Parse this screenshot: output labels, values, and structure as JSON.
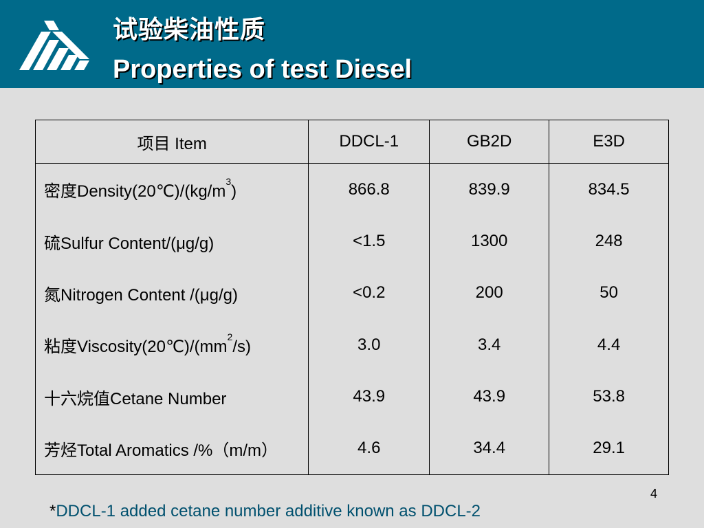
{
  "header": {
    "title_zh": "试验柴油性质",
    "title_en": "Properties of test Diesel",
    "bg_color": "#006a8a",
    "logo_icon": "company-logo-icon"
  },
  "table": {
    "headers": [
      "项目 Item",
      "DDCL-1",
      "GB2D",
      "E3D"
    ],
    "rows": [
      {
        "label_pre": "密度Density(20℃)/(kg/m",
        "label_sup": "3",
        "label_post": ")",
        "values": [
          "866.8",
          "839.9",
          "834.5"
        ]
      },
      {
        "label_pre": "硫Sulfur Content/(μg/g)",
        "label_sup": "",
        "label_post": "",
        "values": [
          "<1.5",
          "1300",
          "248"
        ]
      },
      {
        "label_pre": "氮Nitrogen Content /(μg/g)",
        "label_sup": "",
        "label_post": "",
        "values": [
          "<0.2",
          "200",
          "50"
        ]
      },
      {
        "label_pre": "粘度Viscosity(20℃)/(mm",
        "label_sup": "2",
        "label_post": "/s)",
        "values": [
          "3.0",
          "3.4",
          "4.4"
        ]
      },
      {
        "label_pre": "十六烷值Cetane Number",
        "label_sup": "",
        "label_post": "",
        "values": [
          "43.9",
          "43.9",
          "53.8"
        ]
      },
      {
        "label_pre": "芳烃Total Aromatics /%（m/m）",
        "label_sup": "",
        "label_post": "",
        "values": [
          "4.6",
          "34.4",
          "29.1"
        ]
      }
    ]
  },
  "footer": {
    "page_number": "4",
    "footnote_star": "*",
    "footnote_text": "DDCL-1 added cetane number additive known as DDCL-2",
    "footnote_color": "#00506e"
  }
}
